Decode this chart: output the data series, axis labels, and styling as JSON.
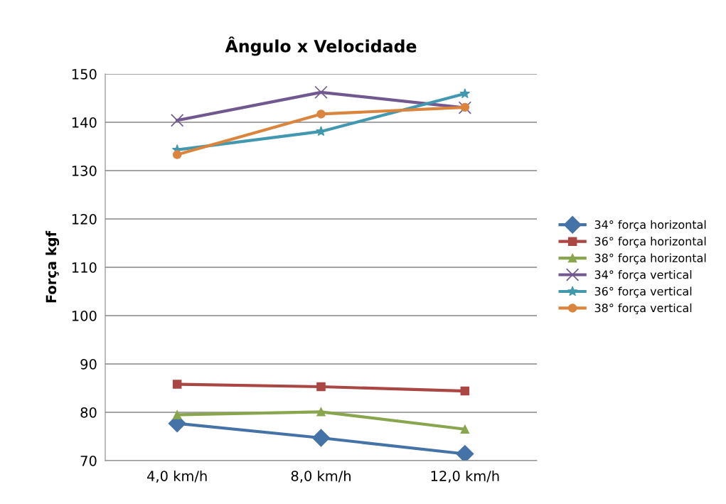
{
  "chart_data": {
    "type": "line",
    "title": "Ângulo x Velocidade",
    "ylabel": "Força kgf",
    "categories": [
      "4,0 km/h",
      "8,0 km/h",
      "12,0 km/h"
    ],
    "series": [
      {
        "name": "34° força horizontal",
        "color": "#4572a7",
        "marker": "diamond",
        "values": [
          77.7,
          74.7,
          71.4
        ]
      },
      {
        "name": "36° força horizontal",
        "color": "#aa4643",
        "marker": "square",
        "values": [
          85.8,
          85.3,
          84.4
        ]
      },
      {
        "name": "38° força horizontal",
        "color": "#89a54e",
        "marker": "triangle",
        "values": [
          79.5,
          80.1,
          76.5
        ]
      },
      {
        "name": "34° força vertical",
        "color": "#71588f",
        "marker": "cross",
        "values": [
          140.4,
          146.2,
          143.0
        ]
      },
      {
        "name": "36° força vertical",
        "color": "#4198af",
        "marker": "star",
        "values": [
          134.3,
          138.1,
          145.9
        ]
      },
      {
        "name": "38° força vertical",
        "color": "#db843d",
        "marker": "circle",
        "values": [
          133.3,
          141.7,
          143.1
        ]
      }
    ],
    "ylim": [
      70,
      150
    ],
    "yticks": [
      70,
      80,
      90,
      100,
      110,
      120,
      130,
      140,
      150
    ],
    "grid": "y",
    "legend": "right"
  }
}
